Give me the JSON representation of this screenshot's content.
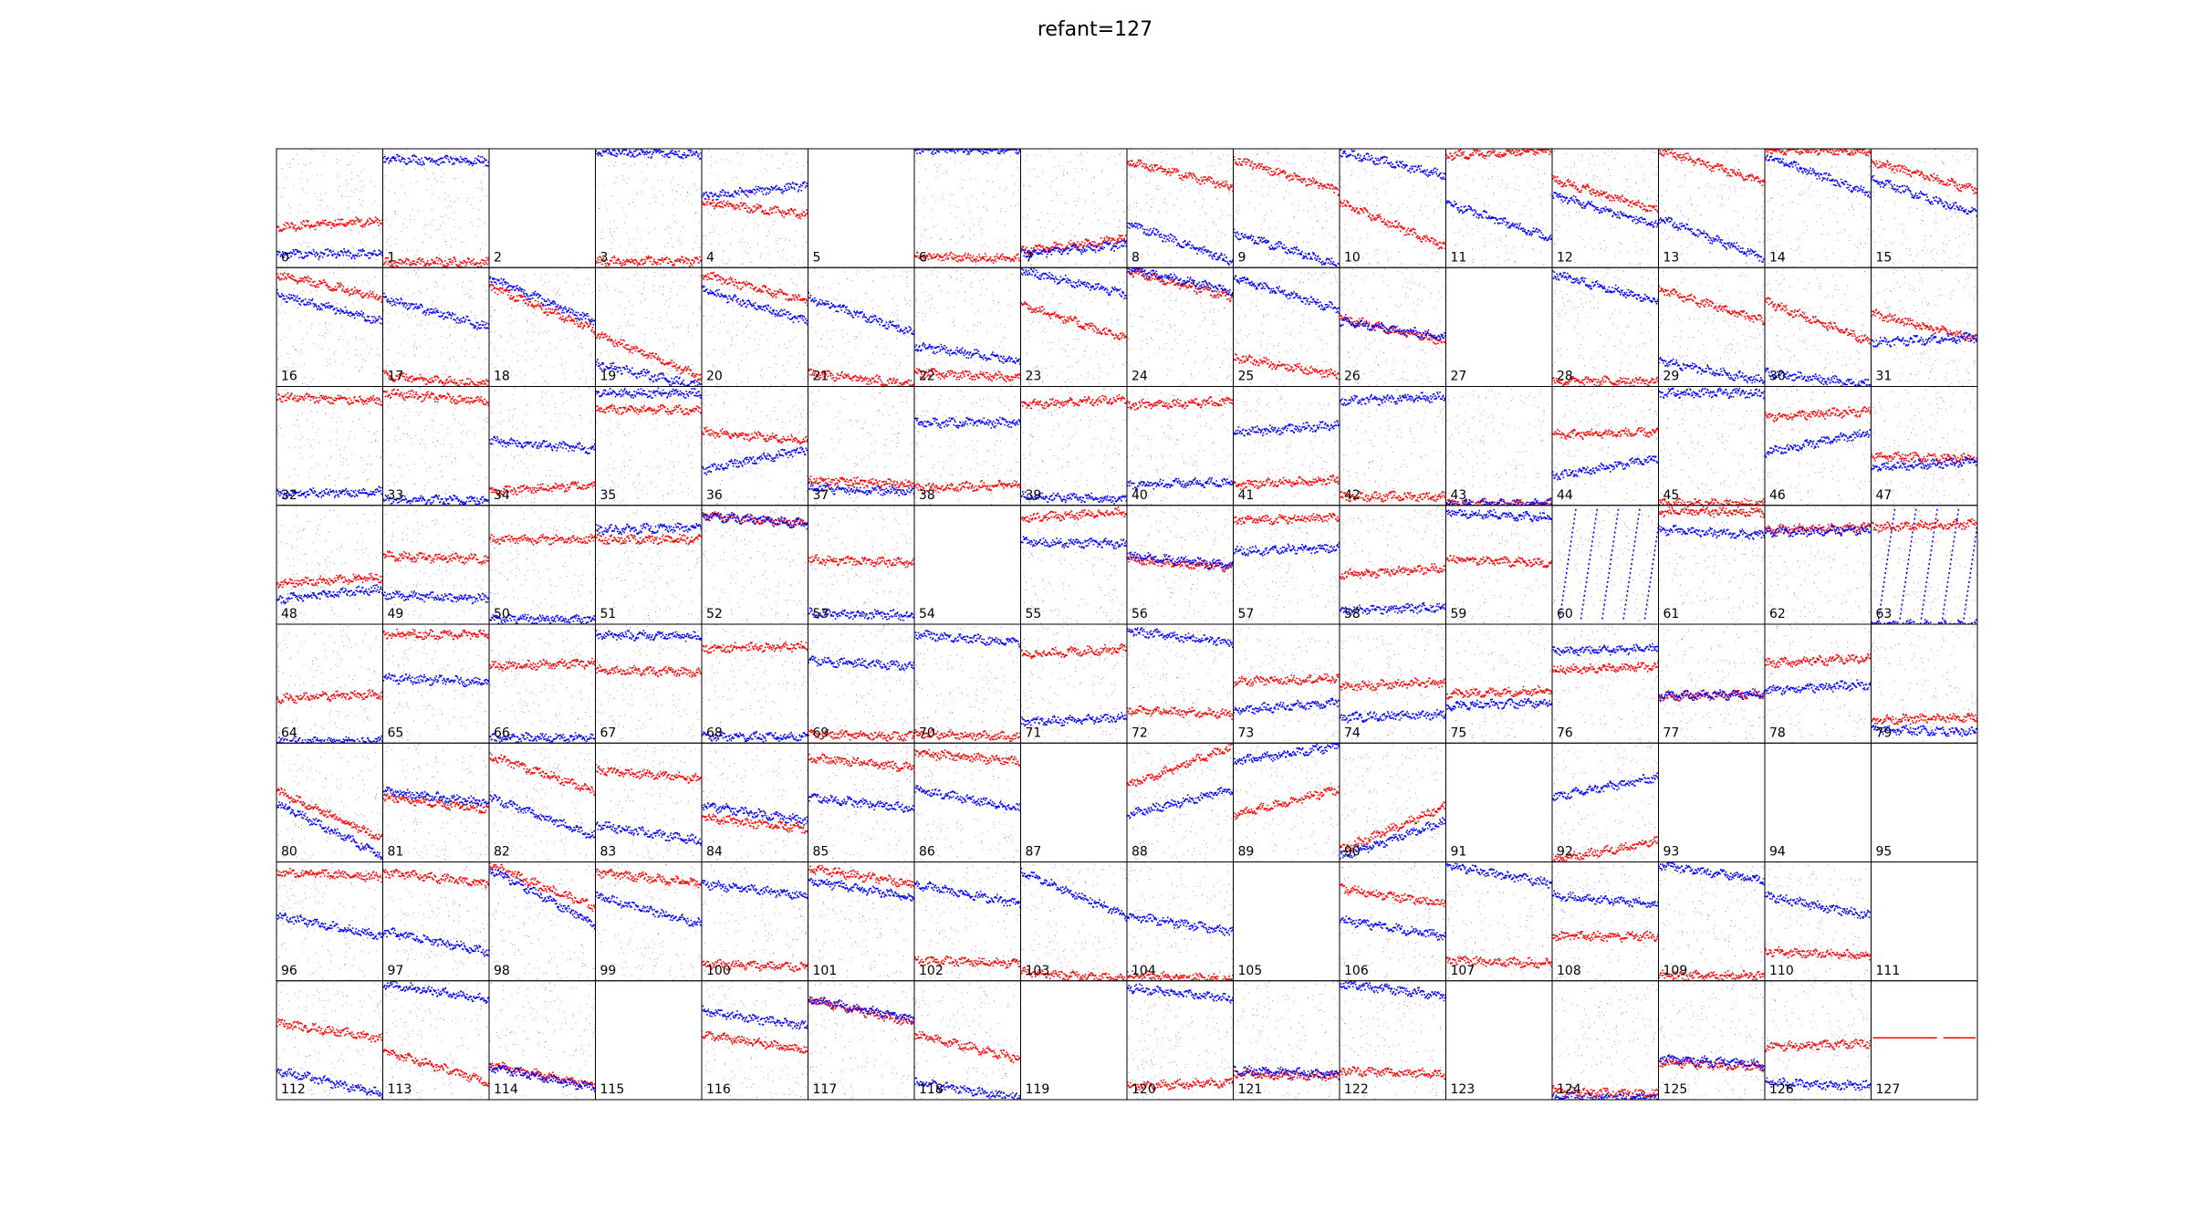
{
  "chart_data": {
    "type": "scatter",
    "title": "refant=127",
    "layout": {
      "rows": 8,
      "cols": 16
    },
    "series_colors": {
      "series_1": "#ff0000",
      "series_2": "#0000ff"
    },
    "panel_labels": [
      "0",
      "1",
      "2",
      "3",
      "4",
      "5",
      "6",
      "7",
      "8",
      "9",
      "10",
      "11",
      "12",
      "13",
      "14",
      "15",
      "16",
      "17",
      "18",
      "19",
      "20",
      "21",
      "22",
      "23",
      "24",
      "25",
      "26",
      "27",
      "28",
      "29",
      "30",
      "31",
      "32",
      "33",
      "34",
      "35",
      "36",
      "37",
      "38",
      "39",
      "40",
      "41",
      "42",
      "43",
      "44",
      "45",
      "46",
      "47",
      "48",
      "49",
      "50",
      "51",
      "52",
      "53",
      "54",
      "55",
      "56",
      "57",
      "58",
      "59",
      "60",
      "61",
      "62",
      "63",
      "64",
      "65",
      "66",
      "67",
      "68",
      "69",
      "70",
      "71",
      "72",
      "73",
      "74",
      "75",
      "76",
      "77",
      "78",
      "79",
      "80",
      "81",
      "82",
      "83",
      "84",
      "85",
      "86",
      "87",
      "88",
      "89",
      "90",
      "91",
      "92",
      "93",
      "94",
      "95",
      "96",
      "97",
      "98",
      "99",
      "100",
      "101",
      "102",
      "103",
      "104",
      "105",
      "106",
      "107",
      "108",
      "109",
      "110",
      "111",
      "112",
      "113",
      "114",
      "115",
      "116",
      "117",
      "118",
      "119",
      "120",
      "121",
      "122",
      "123",
      "124",
      "125",
      "126",
      "127"
    ],
    "empty_panels": [
      2,
      5,
      27,
      54,
      87,
      91,
      93,
      94,
      95,
      105,
      111,
      115,
      119,
      123
    ],
    "panels": {
      "0": {
        "red": [
          0.35,
          0.4
        ],
        "blue": [
          0.12,
          0.12
        ]
      },
      "1": {
        "red": [
          0.05,
          0.05
        ],
        "blue": [
          0.92,
          0.9
        ]
      },
      "3": {
        "red": [
          0.06,
          0.06
        ],
        "blue": [
          0.98,
          0.96
        ]
      },
      "4": {
        "red": [
          0.55,
          0.45
        ],
        "blue": [
          0.6,
          0.7
        ]
      },
      "6": {
        "red": [
          0.1,
          0.08
        ],
        "blue": [
          1.0,
          1.0
        ]
      },
      "7": {
        "red": [
          0.15,
          0.25
        ],
        "blue": [
          0.12,
          0.2
        ]
      },
      "8": {
        "red": [
          0.9,
          0.68
        ],
        "blue": [
          0.38,
          0.05
        ]
      },
      "9": {
        "red": [
          0.92,
          0.65
        ],
        "blue": [
          0.3,
          0.02
        ]
      },
      "10": {
        "red": [
          0.55,
          0.18
        ],
        "blue": [
          0.98,
          0.78
        ]
      },
      "11": {
        "red": [
          0.95,
          1.0
        ],
        "blue": [
          0.55,
          0.25
        ]
      },
      "12": {
        "red": [
          0.75,
          0.48
        ],
        "blue": [
          0.62,
          0.35
        ]
      },
      "13": {
        "red": [
          1.0,
          0.72
        ],
        "blue": [
          0.42,
          0.08
        ]
      },
      "14": {
        "red": [
          1.0,
          0.98
        ],
        "blue": [
          0.95,
          0.62
        ]
      },
      "15": {
        "red": [
          0.9,
          0.65
        ],
        "blue": [
          0.75,
          0.45
        ]
      },
      "16": {
        "red": [
          0.95,
          0.75
        ],
        "blue": [
          0.78,
          0.55
        ]
      },
      "17": {
        "red": [
          0.1,
          0.02
        ],
        "blue": [
          0.75,
          0.5
        ]
      },
      "18": {
        "red": [
          0.85,
          0.48
        ],
        "blue": [
          0.92,
          0.55
        ]
      },
      "19": {
        "red": [
          0.45,
          0.08
        ],
        "blue": [
          0.2,
          0.0
        ]
      },
      "20": {
        "red": [
          0.95,
          0.72
        ],
        "blue": [
          0.82,
          0.55
        ]
      },
      "21": {
        "red": [
          0.12,
          0.02
        ],
        "blue": [
          0.75,
          0.45
        ]
      },
      "22": {
        "red": [
          0.12,
          0.08
        ],
        "blue": [
          0.35,
          0.22
        ]
      },
      "23": {
        "red": [
          0.7,
          0.4
        ],
        "blue": [
          0.98,
          0.78
        ]
      },
      "24": {
        "red": [
          0.98,
          0.75
        ],
        "blue": [
          1.0,
          0.8
        ]
      },
      "25": {
        "red": [
          0.25,
          0.1
        ],
        "blue": [
          0.92,
          0.65
        ]
      },
      "26": {
        "red": [
          0.58,
          0.38
        ],
        "blue": [
          0.55,
          0.42
        ]
      },
      "28": {
        "red": [
          0.05,
          0.05
        ],
        "blue": [
          0.95,
          0.72
        ]
      },
      "29": {
        "red": [
          0.82,
          0.55
        ],
        "blue": [
          0.22,
          0.05
        ]
      },
      "30": {
        "red": [
          0.72,
          0.38
        ],
        "blue": [
          0.12,
          0.02
        ]
      },
      "31": {
        "red": [
          0.62,
          0.4
        ],
        "blue": [
          0.38,
          0.42
        ]
      },
      "32": {
        "red": [
          0.92,
          0.88
        ],
        "blue": [
          0.1,
          0.12
        ]
      },
      "33": {
        "red": [
          0.95,
          0.88
        ],
        "blue": [
          0.05,
          0.05
        ]
      },
      "34": {
        "red": [
          0.12,
          0.18
        ],
        "blue": [
          0.55,
          0.48
        ]
      },
      "35": {
        "red": [
          0.82,
          0.8
        ],
        "blue": [
          0.95,
          0.95
        ]
      },
      "36": {
        "red": [
          0.62,
          0.55
        ],
        "blue": [
          0.3,
          0.48
        ]
      },
      "37": {
        "red": [
          0.22,
          0.18
        ],
        "blue": [
          0.15,
          0.12
        ]
      },
      "38": {
        "red": [
          0.15,
          0.18
        ],
        "blue": [
          0.7,
          0.7
        ]
      },
      "39": {
        "red": [
          0.85,
          0.9
        ],
        "blue": [
          0.08,
          0.06
        ]
      },
      "40": {
        "red": [
          0.85,
          0.88
        ],
        "blue": [
          0.18,
          0.2
        ]
      },
      "41": {
        "red": [
          0.18,
          0.22
        ],
        "blue": [
          0.62,
          0.68
        ]
      },
      "42": {
        "red": [
          0.08,
          0.08
        ],
        "blue": [
          0.88,
          0.92
        ]
      },
      "43": {
        "red": [
          0.02,
          0.02
        ],
        "blue": [
          0.02,
          0.02
        ]
      },
      "44": {
        "red": [
          0.6,
          0.62
        ],
        "blue": [
          0.25,
          0.4
        ]
      },
      "45": {
        "red": [
          0.02,
          0.02
        ],
        "blue": [
          0.95,
          0.95
        ]
      },
      "46": {
        "red": [
          0.75,
          0.8
        ],
        "blue": [
          0.45,
          0.62
        ]
      },
      "47": {
        "red": [
          0.42,
          0.4
        ],
        "blue": [
          0.32,
          0.38
        ]
      },
      "48": {
        "red": [
          0.35,
          0.4
        ],
        "blue": [
          0.22,
          0.3
        ]
      },
      "49": {
        "red": [
          0.58,
          0.55
        ],
        "blue": [
          0.25,
          0.22
        ]
      },
      "50": {
        "red": [
          0.72,
          0.72
        ],
        "blue": [
          0.05,
          0.05
        ]
      },
      "51": {
        "red": [
          0.72,
          0.72
        ],
        "blue": [
          0.8,
          0.82
        ]
      },
      "52": {
        "red": [
          0.92,
          0.85
        ],
        "blue": [
          0.92,
          0.85
        ]
      },
      "53": {
        "red": [
          0.55,
          0.52
        ],
        "blue": [
          0.1,
          0.08
        ]
      },
      "55": {
        "red": [
          0.9,
          0.95
        ],
        "blue": [
          0.7,
          0.68
        ]
      },
      "56": {
        "red": [
          0.55,
          0.48
        ],
        "blue": [
          0.58,
          0.5
        ]
      },
      "57": {
        "red": [
          0.88,
          0.9
        ],
        "blue": [
          0.62,
          0.65
        ]
      },
      "58": {
        "red": [
          0.42,
          0.48
        ],
        "blue": [
          0.12,
          0.15
        ]
      },
      "59": {
        "red": [
          0.55,
          0.52
        ],
        "blue": [
          0.95,
          0.9
        ]
      },
      "61": {
        "red": [
          0.95,
          0.95
        ],
        "blue": [
          0.8,
          0.75
        ]
      },
      "62": {
        "red": [
          0.8,
          0.82
        ],
        "blue": [
          0.78,
          0.8
        ]
      },
      "63": {
        "red": [
          0.82,
          0.85
        ],
        "blue": [
          0.0,
          0.0
        ]
      },
      "64": {
        "red": [
          0.38,
          0.42
        ],
        "blue": [
          0.02,
          0.02
        ]
      },
      "65": {
        "red": [
          0.92,
          0.92
        ],
        "blue": [
          0.55,
          0.52
        ]
      },
      "66": {
        "red": [
          0.65,
          0.68
        ],
        "blue": [
          0.05,
          0.05
        ]
      },
      "67": {
        "red": [
          0.62,
          0.6
        ],
        "blue": [
          0.92,
          0.9
        ]
      },
      "68": {
        "red": [
          0.8,
          0.82
        ],
        "blue": [
          0.06,
          0.06
        ]
      },
      "69": {
        "red": [
          0.08,
          0.06
        ],
        "blue": [
          0.7,
          0.65
        ]
      },
      "70": {
        "red": [
          0.08,
          0.06
        ],
        "blue": [
          0.92,
          0.85
        ]
      },
      "71": {
        "red": [
          0.75,
          0.8
        ],
        "blue": [
          0.18,
          0.22
        ]
      },
      "72": {
        "red": [
          0.28,
          0.25
        ],
        "blue": [
          0.95,
          0.85
        ]
      },
      "73": {
        "red": [
          0.52,
          0.55
        ],
        "blue": [
          0.28,
          0.35
        ]
      },
      "74": {
        "red": [
          0.48,
          0.52
        ],
        "blue": [
          0.22,
          0.25
        ]
      },
      "75": {
        "red": [
          0.42,
          0.45
        ],
        "blue": [
          0.32,
          0.35
        ]
      },
      "76": {
        "red": [
          0.62,
          0.65
        ],
        "blue": [
          0.78,
          0.8
        ]
      },
      "77": {
        "red": [
          0.4,
          0.42
        ],
        "blue": [
          0.4,
          0.42
        ]
      },
      "78": {
        "red": [
          0.68,
          0.72
        ],
        "blue": [
          0.45,
          0.5
        ]
      },
      "79": {
        "red": [
          0.2,
          0.22
        ],
        "blue": [
          0.12,
          0.1
        ]
      },
      "80": {
        "red": [
          0.6,
          0.2
        ],
        "blue": [
          0.5,
          0.05
        ]
      },
      "81": {
        "red": [
          0.55,
          0.45
        ],
        "blue": [
          0.6,
          0.5
        ]
      },
      "82": {
        "red": [
          0.9,
          0.6
        ],
        "blue": [
          0.55,
          0.22
        ]
      },
      "83": {
        "red": [
          0.78,
          0.7
        ],
        "blue": [
          0.32,
          0.18
        ]
      },
      "84": {
        "red": [
          0.38,
          0.28
        ],
        "blue": [
          0.48,
          0.35
        ]
      },
      "85": {
        "red": [
          0.88,
          0.8
        ],
        "blue": [
          0.55,
          0.45
        ]
      },
      "86": {
        "red": [
          0.92,
          0.85
        ],
        "blue": [
          0.62,
          0.45
        ]
      },
      "88": {
        "red": [
          0.65,
          0.98
        ],
        "blue": [
          0.4,
          0.62
        ]
      },
      "89": {
        "red": [
          0.4,
          0.62
        ],
        "blue": [
          0.85,
          0.98
        ]
      },
      "90": {
        "red": [
          0.1,
          0.48
        ],
        "blue": [
          0.05,
          0.35
        ]
      },
      "92": {
        "red": [
          0.02,
          0.18
        ],
        "blue": [
          0.55,
          0.72
        ]
      },
      "96": {
        "red": [
          0.92,
          0.88
        ],
        "blue": [
          0.55,
          0.38
        ]
      },
      "97": {
        "red": [
          0.92,
          0.82
        ],
        "blue": [
          0.42,
          0.25
        ]
      },
      "98": {
        "red": [
          0.98,
          0.62
        ],
        "blue": [
          0.95,
          0.48
        ]
      },
      "99": {
        "red": [
          0.92,
          0.82
        ],
        "blue": [
          0.72,
          0.48
        ]
      },
      "100": {
        "red": [
          0.15,
          0.12
        ],
        "blue": [
          0.82,
          0.72
        ]
      },
      "101": {
        "red": [
          0.95,
          0.82
        ],
        "blue": [
          0.85,
          0.7
        ]
      },
      "102": {
        "red": [
          0.18,
          0.15
        ],
        "blue": [
          0.82,
          0.65
        ]
      },
      "103": {
        "red": [
          0.08,
          0.02
        ],
        "blue": [
          0.92,
          0.55
        ]
      },
      "104": {
        "red": [
          0.05,
          0.02
        ],
        "blue": [
          0.55,
          0.42
        ]
      },
      "106": {
        "red": [
          0.78,
          0.65
        ],
        "blue": [
          0.52,
          0.38
        ]
      },
      "107": {
        "red": [
          0.18,
          0.15
        ],
        "blue": [
          0.98,
          0.82
        ]
      },
      "108": {
        "red": [
          0.38,
          0.38
        ],
        "blue": [
          0.72,
          0.65
        ]
      },
      "109": {
        "red": [
          0.05,
          0.05
        ],
        "blue": [
          0.98,
          0.85
        ]
      },
      "110": {
        "red": [
          0.25,
          0.22
        ],
        "blue": [
          0.72,
          0.55
        ]
      },
      "112": {
        "red": [
          0.65,
          0.52
        ],
        "blue": [
          0.25,
          0.05
        ]
      },
      "113": {
        "red": [
          0.42,
          0.15
        ],
        "blue": [
          0.98,
          0.85
        ]
      },
      "114": {
        "red": [
          0.3,
          0.12
        ],
        "blue": [
          0.28,
          0.1
        ]
      },
      "116": {
        "red": [
          0.55,
          0.42
        ],
        "blue": [
          0.75,
          0.62
        ]
      },
      "117": {
        "red": [
          0.85,
          0.65
        ],
        "blue": [
          0.85,
          0.68
        ]
      },
      "118": {
        "red": [
          0.55,
          0.35
        ],
        "blue": [
          0.15,
          0.02
        ]
      },
      "120": {
        "red": [
          0.12,
          0.15
        ],
        "blue": [
          0.95,
          0.85
        ]
      },
      "121": {
        "red": [
          0.22,
          0.2
        ],
        "blue": [
          0.25,
          0.22
        ]
      },
      "122": {
        "red": [
          0.25,
          0.22
        ],
        "blue": [
          0.98,
          0.88
        ]
      },
      "124": {
        "red": [
          0.08,
          0.05
        ],
        "blue": [
          0.02,
          0.02
        ]
      },
      "125": {
        "red": [
          0.32,
          0.28
        ],
        "blue": [
          0.35,
          0.3
        ]
      },
      "126": {
        "red": [
          0.45,
          0.48
        ],
        "blue": [
          0.15,
          0.12
        ]
      },
      "127": {
        "red": [
          0.52,
          0.52
        ],
        "blue": null
      }
    },
    "streak_panels": [
      60,
      63
    ]
  }
}
